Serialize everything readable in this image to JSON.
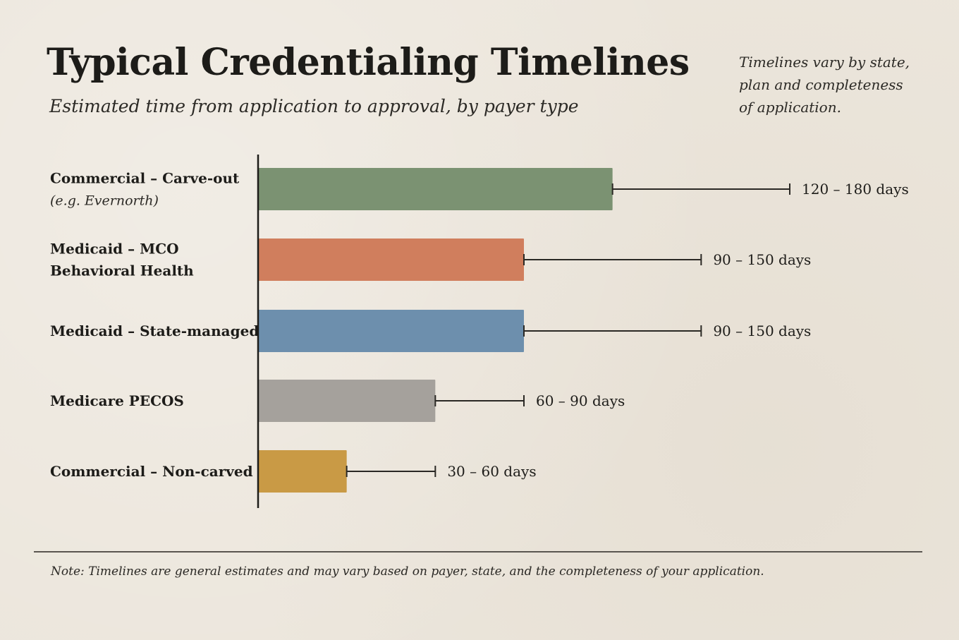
{
  "header": {
    "title": "Typical Credentialing Timelines",
    "subtitle": "Estimated time from application to approval, by payer type"
  },
  "side_note": {
    "lines": [
      "Timelines vary by state,",
      "plan and completeness",
      "of application."
    ]
  },
  "footnote": "Note: Timelines are general estimates and may vary based on payer, state, and the completeness of your application.",
  "chart_data": {
    "type": "bar",
    "orientation": "horizontal",
    "title": "Typical Credentialing Timelines",
    "subtitle": "Estimated time from application to approval, by payer type",
    "unit": "days",
    "categories": [
      {
        "label_lines": [
          "Commercial – Carve-out"
        ],
        "sub_label": "(e.g. Evernorth)",
        "min": 120,
        "max": 180,
        "range_label": "120 – 180 days",
        "color": "#7b9272"
      },
      {
        "label_lines": [
          "Medicaid – MCO",
          "Behavioral Health"
        ],
        "sub_label": "",
        "min": 90,
        "max": 150,
        "range_label": "90 – 150 days",
        "color": "#d07e5d"
      },
      {
        "label_lines": [
          "Medicaid – State-managed"
        ],
        "sub_label": "",
        "min": 90,
        "max": 150,
        "range_label": "90 – 150 days",
        "color": "#6d8fad"
      },
      {
        "label_lines": [
          "Medicare PECOS"
        ],
        "sub_label": "",
        "min": 60,
        "max": 90,
        "range_label": "60 – 90 days",
        "color": "#a5a19c"
      },
      {
        "label_lines": [
          "Commercial – Non-carved"
        ],
        "sub_label": "",
        "min": 30,
        "max": 60,
        "range_label": "30 – 60 days",
        "color": "#c99a45"
      }
    ],
    "grid": false,
    "legend": "none"
  }
}
